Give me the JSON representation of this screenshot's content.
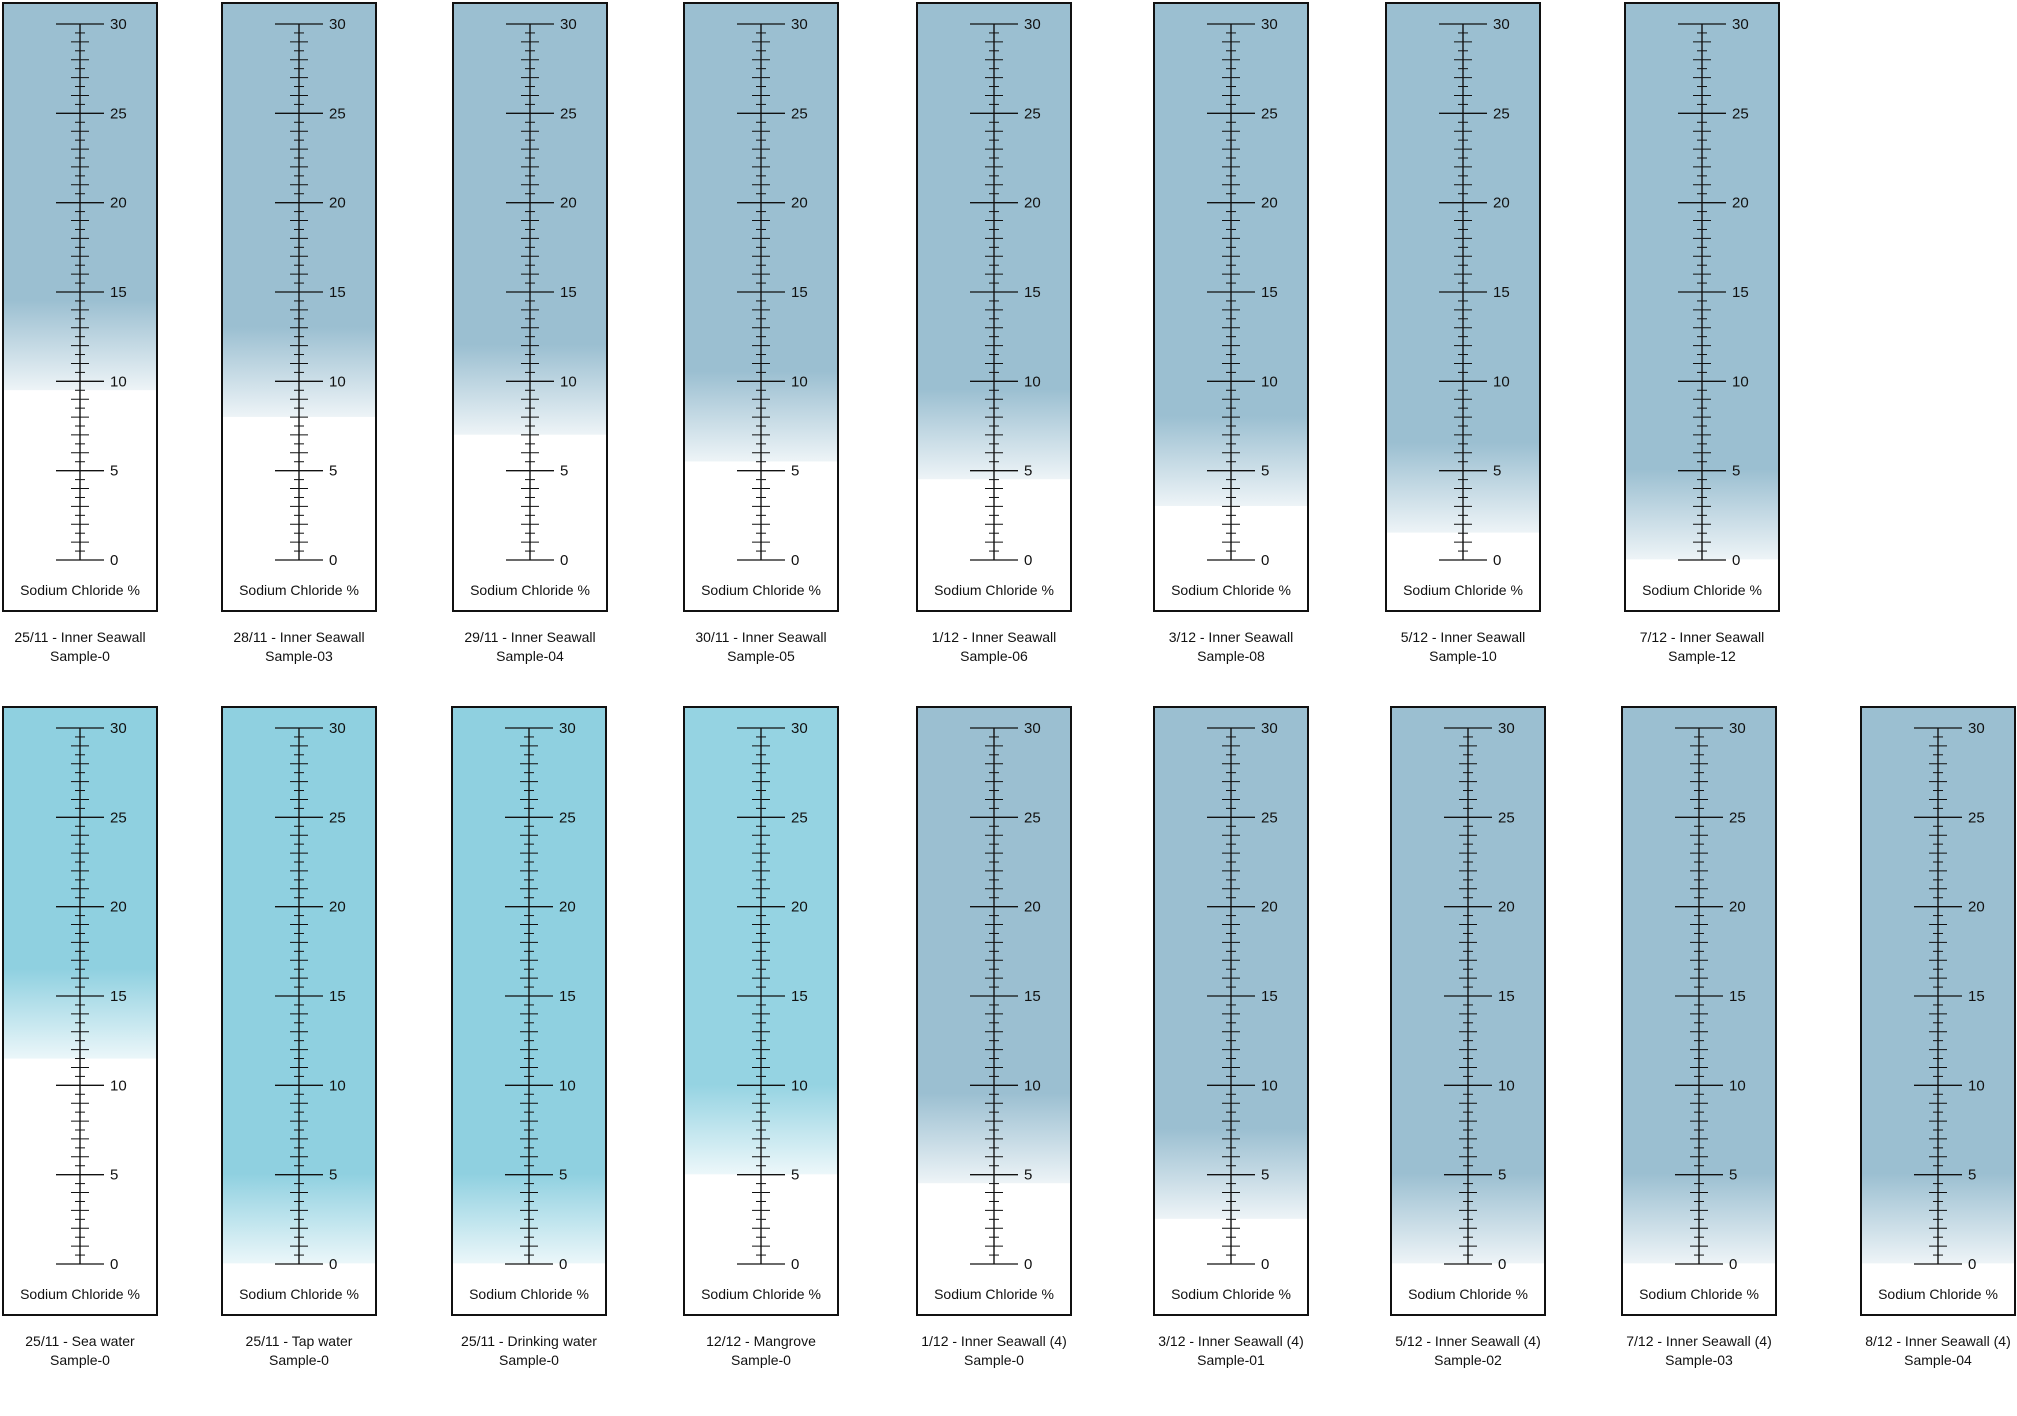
{
  "chart_data": [
    {
      "type": "gauge",
      "unit_label": "Sodium Chloride %",
      "axis": {
        "min": 0,
        "max": 30,
        "major_step": 5,
        "minor_step": 0.5,
        "labels": [
          "0",
          "5",
          "10",
          "15",
          "20",
          "25",
          "30"
        ]
      },
      "colors": {
        "inner_seawall": "#9bbfd1",
        "sea_water": "#8fd0e0",
        "tap_water": "#8fd0e0",
        "drinking_water": "#8fd0e0",
        "mangrove": "#95d3e2",
        "frame": "#111111"
      },
      "rows": [
        {
          "name": "top-row",
          "samples": [
            {
              "date_label": "25/11 - Inner Seawall",
              "sample": "Sample-0",
              "value": 9.5,
              "color": "#9bbfd1"
            },
            {
              "date_label": "28/11 - Inner Seawall",
              "sample": "Sample-03",
              "value": 8,
              "color": "#9bbfd1"
            },
            {
              "date_label": "29/11 - Inner Seawall",
              "sample": "Sample-04",
              "value": 7,
              "color": "#9bbfd1"
            },
            {
              "date_label": "30/11 - Inner Seawall",
              "sample": "Sample-05",
              "value": 5.5,
              "color": "#9bbfd1"
            },
            {
              "date_label": "1/12 - Inner Seawall",
              "sample": "Sample-06",
              "value": 4.5,
              "color": "#9bbfd1"
            },
            {
              "date_label": "3/12 - Inner Seawall",
              "sample": "Sample-08",
              "value": 3,
              "color": "#9bbfd1"
            },
            {
              "date_label": "5/12 - Inner Seawall",
              "sample": "Sample-10",
              "value": 1.5,
              "color": "#9bbfd1"
            },
            {
              "date_label": "7/12 - Inner Seawall",
              "sample": "Sample-12",
              "value": 0,
              "color": "#9bbfd1"
            }
          ]
        },
        {
          "name": "bottom-row",
          "samples": [
            {
              "date_label": "25/11 - Sea water",
              "sample": "Sample-0",
              "value": 11.5,
              "color": "#8fd0e0"
            },
            {
              "date_label": "25/11 - Tap water",
              "sample": "Sample-0",
              "value": 0,
              "color": "#8fd0e0"
            },
            {
              "date_label": "25/11 - Drinking water",
              "sample": "Sample-0",
              "value": 0,
              "color": "#8fd0e0"
            },
            {
              "date_label": "12/12 - Mangrove",
              "sample": "Sample-0",
              "value": 5,
              "color": "#95d3e2"
            },
            {
              "date_label": "1/12 - Inner Seawall (4)",
              "sample": "Sample-0",
              "value": 4.5,
              "color": "#9bbfd1"
            },
            {
              "date_label": "3/12 - Inner Seawall (4)",
              "sample": "Sample-01",
              "value": 2.5,
              "color": "#9bbfd1"
            },
            {
              "date_label": "5/12 - Inner Seawall (4)",
              "sample": "Sample-02",
              "value": 0,
              "color": "#9bbfd1"
            },
            {
              "date_label": "7/12 - Inner Seawall (4)",
              "sample": "Sample-03",
              "value": 0,
              "color": "#9bbfd1"
            },
            {
              "date_label": "8/12 - Inner Seawall (4)",
              "sample": "Sample-04",
              "value": 0,
              "color": "#9bbfd1"
            }
          ]
        }
      ]
    }
  ]
}
